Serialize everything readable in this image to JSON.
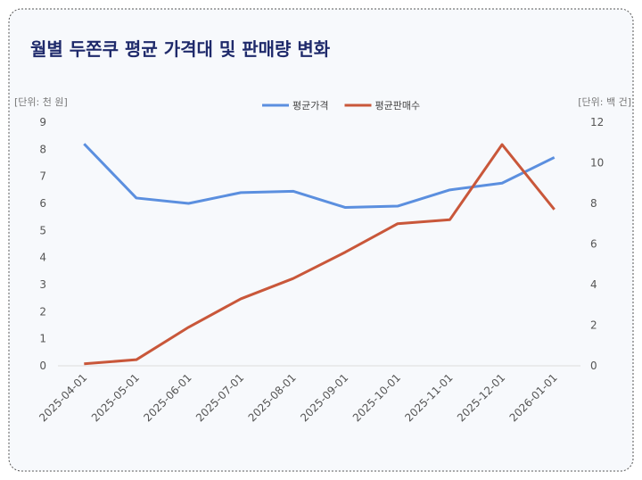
{
  "chart_data": {
    "type": "line",
    "title": "월별 두쫀쿠 평균 가격대 및 판매량 변화",
    "y_label": "[단위: 천 원]",
    "y2_label": "[단위: 백 건]",
    "x": [
      "2025-04-01",
      "2025-05-01",
      "2025-06-01",
      "2025-07-01",
      "2025-08-01",
      "2025-09-01",
      "2025-10-01",
      "2025-11-01",
      "2025-12-01",
      "2026-01-01"
    ],
    "series": [
      {
        "name": "평균가격",
        "color": "#5b8fdf",
        "values": [
          8.2,
          6.2,
          6.0,
          6.4,
          6.45,
          5.85,
          5.9,
          6.5,
          6.75,
          7.7
        ]
      },
      {
        "name": "평균판매수",
        "color": "#c9573a",
        "axis": "y2",
        "values": [
          0.1,
          0.3,
          1.9,
          3.3,
          4.3,
          5.6,
          7.0,
          7.2,
          10.9,
          7.7
        ]
      }
    ],
    "ylim": [
      0,
      9
    ],
    "yticks": [
      0,
      1,
      2,
      3,
      4,
      5,
      6,
      7,
      8,
      9
    ],
    "y2lim": [
      0,
      12
    ],
    "y2ticks": [
      0,
      2,
      4,
      6,
      8,
      10,
      12
    ],
    "legend": "top"
  }
}
